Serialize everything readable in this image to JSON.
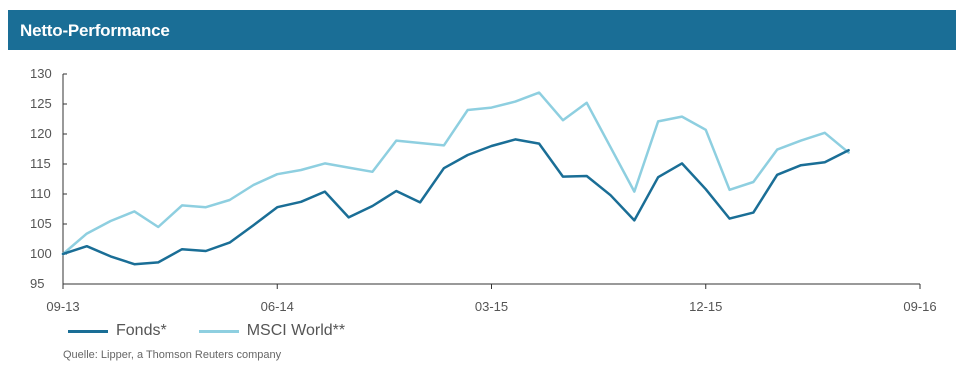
{
  "header": {
    "title": "Netto-Performance"
  },
  "source": "Quelle: Lipper, a Thomson Reuters company",
  "colors": {
    "header_bg": "#1a6e96",
    "fonds": "#1a6e96",
    "msci": "#8ecfe0",
    "axis": "#333333"
  },
  "chart_data": {
    "type": "line",
    "title": "Netto-Performance",
    "xlabel": "",
    "ylabel": "",
    "grid": false,
    "legend_position": "bottom-left",
    "x_start": "09-13",
    "x_step_months": 1,
    "x_ticks": [
      {
        "label": "09-13",
        "month_index": 0
      },
      {
        "label": "06-14",
        "month_index": 9
      },
      {
        "label": "03-15",
        "month_index": 18
      },
      {
        "label": "12-15",
        "month_index": 27
      },
      {
        "label": "09-16",
        "month_index": 36
      }
    ],
    "xlim_months": [
      0,
      36
    ],
    "ylim": [
      95,
      130
    ],
    "yticks": [
      95,
      100,
      105,
      110,
      115,
      120,
      125,
      130
    ],
    "series": [
      {
        "name": "Fonds*",
        "color": "#1a6e96",
        "values": [
          100,
          101.3,
          99.6,
          98.3,
          98.6,
          100.8,
          100.5,
          101.9,
          104.8,
          107.8,
          108.7,
          110.4,
          106.1,
          108.0,
          110.5,
          108.6,
          114.3,
          116.5,
          118.0,
          119.1,
          118.4,
          112.9,
          113.0,
          109.8,
          105.6,
          112.8,
          115.1,
          110.8,
          105.9,
          106.9,
          113.2,
          114.8,
          115.3,
          117.3
        ]
      },
      {
        "name": "MSCI World**",
        "color": "#8ecfe0",
        "values": [
          100,
          103.4,
          105.5,
          107.1,
          104.5,
          108.1,
          107.8,
          109.0,
          111.5,
          113.3,
          114.0,
          115.1,
          114.4,
          113.7,
          118.9,
          118.5,
          118.1,
          124.0,
          124.4,
          125.4,
          126.9,
          122.3,
          125.2,
          117.8,
          110.4,
          122.1,
          122.9,
          120.7,
          110.7,
          112.0,
          117.4,
          118.9,
          120.2,
          116.9
        ]
      }
    ]
  }
}
